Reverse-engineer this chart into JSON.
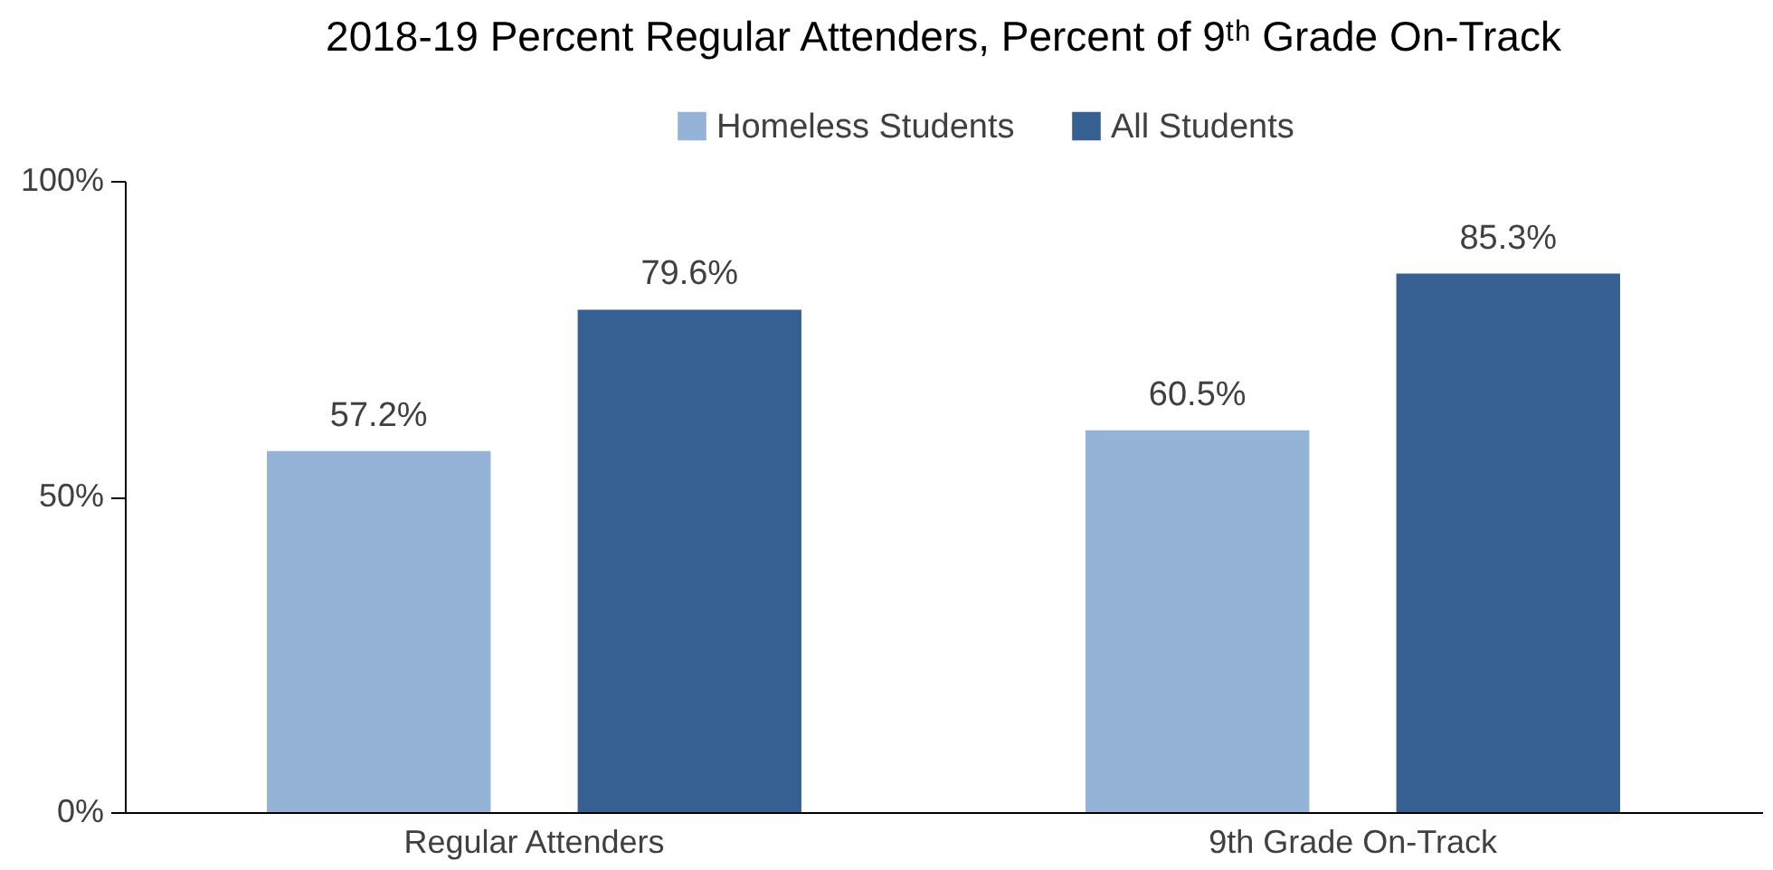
{
  "chart_data": {
    "type": "bar",
    "title": "2018-19 Percent Regular Attenders, Percent of 9ᵗʰ Grade On-Track",
    "categories": [
      "Regular Attenders",
      "9th Grade On-Track"
    ],
    "series": [
      {
        "name": "Homeless Students",
        "color": "#95b3d7",
        "values": [
          57.2,
          60.5
        ],
        "value_labels": [
          "57.2%",
          "60.5%"
        ]
      },
      {
        "name": "All Students",
        "color": "#366092",
        "values": [
          79.6,
          85.3
        ],
        "value_labels": [
          "79.6%",
          "85.3%"
        ]
      }
    ],
    "ylim": [
      0,
      100
    ],
    "yticks": [
      {
        "value": 0,
        "label": "0%"
      },
      {
        "value": 50,
        "label": "50%"
      },
      {
        "value": 100,
        "label": "100%"
      }
    ],
    "grid": false,
    "legend": "top"
  }
}
